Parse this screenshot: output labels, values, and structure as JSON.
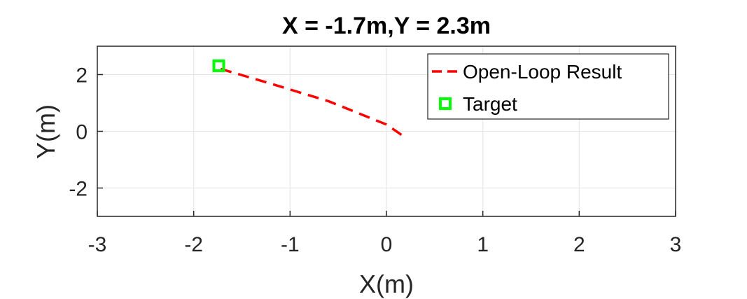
{
  "chart_data": {
    "type": "line",
    "title": "X = -1.7m,Y = 2.3m",
    "xlabel": "X(m)",
    "ylabel": "Y(m)",
    "xlim": [
      -3,
      3
    ],
    "ylim": [
      -3,
      3
    ],
    "xticks": [
      -3,
      -2,
      -1,
      0,
      1,
      2,
      3
    ],
    "yticks": [
      -2,
      0,
      2
    ],
    "xtick_labels": [
      "-3",
      "-2",
      "-1",
      "0",
      "1",
      "2",
      "3"
    ],
    "ytick_labels": [
      "-2",
      "0",
      "2"
    ],
    "grid": true,
    "legend_position": "top-right",
    "series": [
      {
        "name": "Open-Loop Result",
        "style": "dashed",
        "color": "#ff0000",
        "x": [
          -1.72,
          -1.2,
          -0.6,
          0.0,
          0.18
        ],
        "y": [
          2.2,
          1.68,
          1.06,
          0.24,
          -0.18
        ]
      },
      {
        "name": "Target",
        "style": "marker-square",
        "color": "#00ff00",
        "x": [
          -1.74
        ],
        "y": [
          2.31
        ]
      }
    ]
  }
}
